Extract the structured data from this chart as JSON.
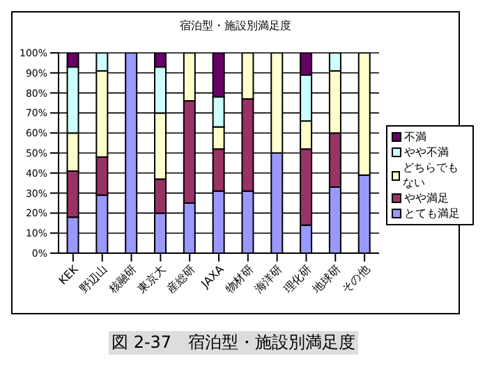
{
  "chart_data": {
    "type": "bar",
    "stacked": true,
    "title": "宿泊型・施設別満足度",
    "categories": [
      "KEK",
      "野辺山",
      "核融研",
      "東京大",
      "産総研",
      "JAXA",
      "物材研",
      "海洋研",
      "理化研",
      "地球研",
      "その他"
    ],
    "series": [
      {
        "name": "とても満足",
        "color": "#9999ff",
        "values": [
          18,
          29,
          100,
          20,
          25,
          31,
          31,
          50,
          14,
          33,
          39
        ]
      },
      {
        "name": "やや満足",
        "color": "#993366",
        "values": [
          23,
          19,
          0,
          17,
          51,
          21,
          46,
          0,
          38,
          27,
          0
        ]
      },
      {
        "name": "どちらでもない",
        "color": "#ffffcc",
        "values": [
          19,
          43,
          0,
          33,
          24,
          11,
          23,
          50,
          14,
          31,
          61
        ]
      },
      {
        "name": "やや不満",
        "color": "#ccffff",
        "values": [
          33,
          9,
          0,
          23,
          0,
          15,
          0,
          0,
          23,
          9,
          0
        ]
      },
      {
        "name": "不満",
        "color": "#660066",
        "values": [
          7,
          0,
          0,
          7,
          0,
          22,
          0,
          0,
          11,
          0,
          0
        ]
      }
    ],
    "ylim": [
      0,
      100
    ],
    "yticks": [
      {
        "value": 0,
        "label": "0%"
      },
      {
        "value": 10,
        "label": "10%"
      },
      {
        "value": 20,
        "label": "20%"
      },
      {
        "value": 30,
        "label": "30%"
      },
      {
        "value": 40,
        "label": "40%"
      },
      {
        "value": 50,
        "label": "50%"
      },
      {
        "value": 60,
        "label": "60%"
      },
      {
        "value": 70,
        "label": "70%"
      },
      {
        "value": 80,
        "label": "80%"
      },
      {
        "value": 90,
        "label": "90%"
      },
      {
        "value": 100,
        "label": "100%"
      }
    ],
    "grid": "y",
    "legend": "right",
    "annotations": [
      "図 2-37　宿泊型・施設別満足度"
    ]
  }
}
